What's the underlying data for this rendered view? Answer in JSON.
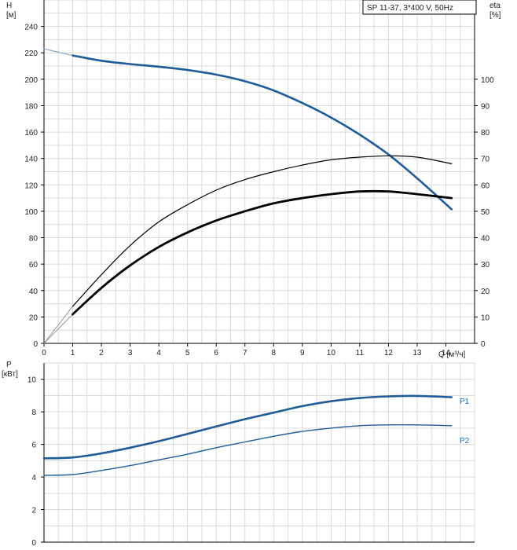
{
  "legend_box": "SP 11-37, 3*400 V, 50Hz",
  "colors": {
    "head": "#1f5c99",
    "eta": "#000000",
    "power": "#1f5c99",
    "power_label": "#1f6fb3"
  },
  "chart_data": [
    {
      "type": "line",
      "panel": "top",
      "ylabel_left": [
        "H",
        "[м]"
      ],
      "ylabel_right": [
        "eta",
        "[%]"
      ],
      "xlabel": "Q [м³/ч]",
      "xlim": [
        0,
        15
      ],
      "x_ticks": [
        0,
        1,
        2,
        3,
        4,
        5,
        6,
        7,
        8,
        9,
        10,
        11,
        12,
        13,
        14
      ],
      "ylim_left": [
        0,
        260
      ],
      "y_ticks_left": [
        0,
        20,
        40,
        60,
        80,
        100,
        120,
        140,
        160,
        180,
        200,
        220,
        240
      ],
      "ylim_right": [
        0,
        130
      ],
      "y_ticks_right": [
        0,
        10,
        20,
        30,
        40,
        50,
        60,
        70,
        80,
        90,
        100
      ],
      "grid": true,
      "series": [
        {
          "axis": "left",
          "style": "head-ext",
          "x": [
            0,
            0.5,
            1
          ],
          "y": [
            223,
            220.5,
            218
          ]
        },
        {
          "axis": "left",
          "style": "head",
          "x": [
            1,
            2,
            3,
            4,
            5,
            6,
            7,
            8,
            9,
            10,
            11,
            12,
            13,
            14.2
          ],
          "y": [
            218,
            214,
            211.5,
            209.5,
            207,
            203.5,
            198.5,
            191.5,
            182,
            171,
            158,
            143,
            125,
            101.5
          ]
        },
        {
          "axis": "right",
          "style": "eta-ext",
          "x": [
            0,
            0.5,
            1
          ],
          "y": [
            0,
            7,
            14
          ]
        },
        {
          "axis": "right",
          "style": "eta-thin",
          "x": [
            1,
            2,
            3,
            4,
            5,
            6,
            7,
            8,
            9,
            10,
            11,
            12,
            13,
            14.2
          ],
          "y": [
            14,
            26,
            37,
            46,
            52.5,
            58,
            62,
            65,
            67.5,
            69.5,
            70.5,
            71,
            70.5,
            68
          ]
        },
        {
          "axis": "right",
          "style": "eta-ext2",
          "x": [
            0,
            0.5,
            1
          ],
          "y": [
            0,
            5.5,
            11
          ]
        },
        {
          "axis": "right",
          "style": "eta-thick",
          "x": [
            1,
            2,
            3,
            4,
            5,
            6,
            7,
            8,
            9,
            10,
            11,
            12,
            13,
            14.2
          ],
          "y": [
            11,
            21,
            29.5,
            36.5,
            42,
            46.5,
            50,
            53,
            55,
            56.5,
            57.5,
            57.5,
            56.5,
            55
          ]
        }
      ]
    },
    {
      "type": "line",
      "panel": "bottom",
      "ylabel": [
        "P",
        "[кВт]"
      ],
      "xlim": [
        0,
        15
      ],
      "ylim": [
        0,
        11
      ],
      "y_ticks": [
        0,
        2,
        4,
        6,
        8,
        10
      ],
      "grid": true,
      "series": [
        {
          "name": "P1",
          "style": "p1",
          "x": [
            0,
            1,
            2,
            3,
            4,
            5,
            6,
            7,
            8,
            9,
            10,
            11,
            12,
            13,
            14.2
          ],
          "y": [
            5.15,
            5.2,
            5.45,
            5.8,
            6.2,
            6.65,
            7.1,
            7.55,
            7.95,
            8.35,
            8.65,
            8.85,
            8.95,
            8.98,
            8.9
          ]
        },
        {
          "name": "P2",
          "style": "p2",
          "x": [
            0,
            1,
            2,
            3,
            4,
            5,
            6,
            7,
            8,
            9,
            10,
            11,
            12,
            13,
            14.2
          ],
          "y": [
            4.1,
            4.15,
            4.4,
            4.7,
            5.05,
            5.4,
            5.8,
            6.15,
            6.5,
            6.8,
            7.0,
            7.15,
            7.2,
            7.2,
            7.15
          ]
        }
      ]
    }
  ]
}
